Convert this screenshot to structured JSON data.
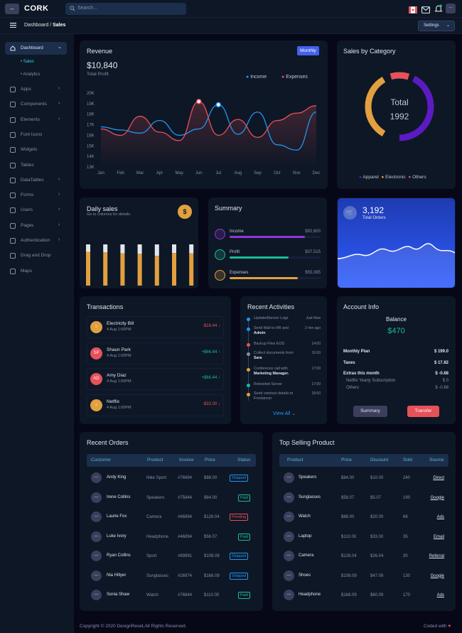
{
  "header": {
    "logo_glyph": "↔",
    "brand": "CORK",
    "search_placeholder": "Search...",
    "icons": [
      "flag-icon",
      "mail-icon",
      "bell-icon",
      "user-menu-icon"
    ],
    "user_menu_glyph": "···"
  },
  "breadcrumb": {
    "parent": "Dashboard",
    "separator": "/",
    "current": "Sales"
  },
  "settings": {
    "label": "Settings"
  },
  "sidebar": {
    "dashboard": "Dashboard",
    "sub": [
      "Sales",
      "Analytics"
    ],
    "items": [
      {
        "label": "Apps",
        "chevron": true
      },
      {
        "label": "Components",
        "chevron": true
      },
      {
        "label": "Elements",
        "chevron": true
      },
      {
        "label": "Font Icons",
        "chevron": false
      },
      {
        "label": "Widgets",
        "chevron": false
      },
      {
        "label": "Tables",
        "chevron": false
      },
      {
        "label": "DataTables",
        "chevron": true
      },
      {
        "label": "Forms",
        "chevron": true
      },
      {
        "label": "Users",
        "chevron": true
      },
      {
        "label": "Pages",
        "chevron": true
      },
      {
        "label": "Authentication",
        "chevron": true
      },
      {
        "label": "Drag and Drop",
        "chevron": false
      },
      {
        "label": "Maps",
        "chevron": false
      }
    ]
  },
  "revenue": {
    "title": "Revenue",
    "toggle": "Monthly",
    "total": "$10,840",
    "subtitle": "Total Profit",
    "legend": [
      "Income",
      "Expenses"
    ]
  },
  "chart_data": [
    {
      "type": "line",
      "title": "Revenue",
      "categories": [
        "Jan",
        "Feb",
        "Mar",
        "Apr",
        "May",
        "Jun",
        "Jul",
        "Aug",
        "Sep",
        "Oct",
        "Nov",
        "Dec"
      ],
      "ylim": [
        13,
        20
      ],
      "yticks": [
        "13K",
        "14K",
        "15K",
        "16K",
        "17K",
        "18K",
        "19K",
        "20K"
      ],
      "series": [
        {
          "name": "Income",
          "color": "#2196f3",
          "values": [
            16.8,
            16.5,
            16.2,
            17.4,
            16.0,
            16.6,
            18.9,
            16.1,
            18.2,
            15.1,
            14.6,
            18.2
          ]
        },
        {
          "name": "Expenses",
          "color": "#e7515a",
          "values": [
            16.6,
            16.0,
            17.8,
            16.3,
            15.5,
            19.2,
            16.0,
            17.5,
            15.8,
            17.4,
            18.1,
            18.8
          ]
        }
      ]
    },
    {
      "type": "pie",
      "title": "Sales by Category",
      "center_label": "Total",
      "center_value": "1992",
      "series": [
        {
          "name": "Apparel",
          "color": "#5c1ac3"
        },
        {
          "name": "Electronic",
          "color": "#e2a03f"
        },
        {
          "name": "Others",
          "color": "#e7515a"
        }
      ],
      "values": [
        985,
        737,
        270
      ]
    },
    {
      "type": "bar",
      "title": "Daily sales",
      "values": [
        0.82,
        0.81,
        0.78,
        0.77,
        0.72,
        0.79,
        0.78
      ],
      "secondary": [
        0.18,
        0.19,
        0.22,
        0.23,
        0.28,
        0.21,
        0.22
      ]
    }
  ],
  "sales_category": {
    "title": "Sales by Category",
    "center_label": "Total",
    "center_value": "1992",
    "legend": [
      "Apparel",
      "Electronic",
      "Others"
    ]
  },
  "daily_sales": {
    "title": "Daily sales",
    "subtitle": "Go to columns for details.",
    "icon_glyph": "$"
  },
  "summary": {
    "title": "Summary",
    "rows": [
      {
        "label": "Income",
        "value": "$92,600",
        "color": "#8e38d8",
        "fill": 0.83
      },
      {
        "label": "Profit",
        "value": "$37,515",
        "color": "#1abc9c",
        "fill": 0.65
      },
      {
        "label": "Expenses",
        "value": "$55,085",
        "color": "#e2a03f",
        "fill": 0.75
      }
    ]
  },
  "orders_card": {
    "value": "3,192",
    "label": "Total Orders"
  },
  "transactions": {
    "title": "Transactions",
    "rows": [
      {
        "initials": "",
        "name": "Electricity Bill",
        "date": "4 Aug 1:00PM",
        "amount": "-$16.44",
        "arrow": "↓",
        "color": "#e7515a",
        "avatar_color": "#e2a03f"
      },
      {
        "initials": "SP",
        "name": "Shaun Park",
        "date": "4 Aug 1:00PM",
        "amount": "+$66.44",
        "arrow": "↑",
        "color": "#1abc9c",
        "avatar_color": "#e7515a"
      },
      {
        "initials": "AD",
        "name": "Amy Diaz",
        "date": "4 Aug 1:00PM",
        "amount": "+$66.44",
        "arrow": "↑",
        "color": "#1abc9c",
        "avatar_color": "#e7515a"
      },
      {
        "initials": "",
        "name": "Netflix",
        "date": "4 Aug 1:00PM",
        "amount": "-$32.00",
        "arrow": "↓",
        "color": "#e7515a",
        "avatar_color": "#e2a03f"
      }
    ]
  },
  "activities": {
    "title": "Recent Activities",
    "view_all": "View All ⌄",
    "items": [
      {
        "text": "UpdatedServer Logs",
        "bold": "",
        "time": "Just Now",
        "color": "#2196f3"
      },
      {
        "text": "Send Mail to HR and",
        "bold": "Admin",
        "time": "2 min ago",
        "color": "#2196f3"
      },
      {
        "text": "Backup Files EOD",
        "bold": "",
        "time": "14:00",
        "color": "#e7515a"
      },
      {
        "text": "Collect documents from",
        "bold": "Sara",
        "time": "16:00",
        "color": "#888ea8"
      },
      {
        "text": "Conference call with",
        "bold": "Marketing Manager.",
        "time": "17:00",
        "color": "#e2a03f"
      },
      {
        "text": "Rebooted Server",
        "bold": "",
        "time": "17:00",
        "color": "#1abc9c"
      },
      {
        "text": "Send contract details to Freelancer",
        "bold": "",
        "time": "18:00",
        "color": "#e2a03f"
      }
    ]
  },
  "account": {
    "title": "Account Info",
    "balance_label": "Balance",
    "balance": "$470",
    "rows": [
      {
        "label": "Monthly Plan",
        "value": "$ 199.0",
        "strong": true
      },
      {
        "label": "Taxes",
        "value": "$ 17.82",
        "strong": true
      },
      {
        "label": "Extras this month",
        "value": "$ -0.68",
        "strong": true
      },
      {
        "label": "Netflix Yearly Subscription",
        "value": "$ 0",
        "strong": false
      },
      {
        "label": "Others",
        "value": "$ -0.68",
        "strong": false
      }
    ],
    "summary_btn": "Summary",
    "transfer_btn": "Transfer"
  },
  "recent_orders": {
    "title": "Recent Orders",
    "headers": [
      "Customer",
      "Product",
      "Invoice",
      "Price",
      "Status"
    ],
    "rows": [
      {
        "name": "Andy King",
        "product": "Nike Sport",
        "invoice": "#76894",
        "price": "$88.00",
        "status": "Shipped",
        "status_color": "#2196f3"
      },
      {
        "name": "Irene Collins",
        "product": "Speakers",
        "invoice": "#75844",
        "price": "$84.00",
        "status": "Paid",
        "status_color": "#1abc9c"
      },
      {
        "name": "Laurie Fox",
        "product": "Camera",
        "invoice": "#66894",
        "price": "$126.04",
        "status": "Pending",
        "status_color": "#e7515a"
      },
      {
        "name": "Luke Ivory",
        "product": "Headphone",
        "invoice": "#46894",
        "price": "$56.07",
        "status": "Paid",
        "status_color": "#1abc9c"
      },
      {
        "name": "Ryan Collins",
        "product": "Sport",
        "invoice": "#89891",
        "price": "$108.09",
        "status": "Shipped",
        "status_color": "#2196f3"
      },
      {
        "name": "Nia Hillyer",
        "product": "Sunglasses",
        "invoice": "#26974",
        "price": "$168.09",
        "status": "Shipped",
        "status_color": "#2196f3"
      },
      {
        "name": "Sonia Shaw",
        "product": "Watch",
        "invoice": "#76844",
        "price": "$110.00",
        "status": "Paid",
        "status_color": "#1abc9c"
      }
    ]
  },
  "top_selling": {
    "title": "Top Selling Product",
    "headers": [
      "Product",
      "Price",
      "Discount",
      "Sold",
      "Source"
    ],
    "rows": [
      {
        "product": "Speakers",
        "price": "$84.00",
        "discount": "$10.00",
        "sold": "240",
        "source": "Direct"
      },
      {
        "product": "Sunglasses",
        "price": "$56.07",
        "discount": "$5.07",
        "sold": "190",
        "source": "Google"
      },
      {
        "product": "Watch",
        "price": "$88.00",
        "discount": "$20.00",
        "sold": "66",
        "source": "Ads"
      },
      {
        "product": "Laptop",
        "price": "$110.00",
        "discount": "$33.00",
        "sold": "35",
        "source": "Email"
      },
      {
        "product": "Camera",
        "price": "$126.04",
        "discount": "$26.04",
        "sold": "30",
        "source": "Referral"
      },
      {
        "product": "Shoes",
        "price": "$108.09",
        "discount": "$47.09",
        "sold": "130",
        "source": "Google"
      },
      {
        "product": "Headphone",
        "price": "$168.09",
        "discount": "$60.09",
        "sold": "170",
        "source": "Ads"
      }
    ]
  },
  "footer": {
    "copyright": "Copyright © 2020 DesignReset,All Rights Reserved.",
    "coded": "Coded with",
    "heart": "♥"
  }
}
